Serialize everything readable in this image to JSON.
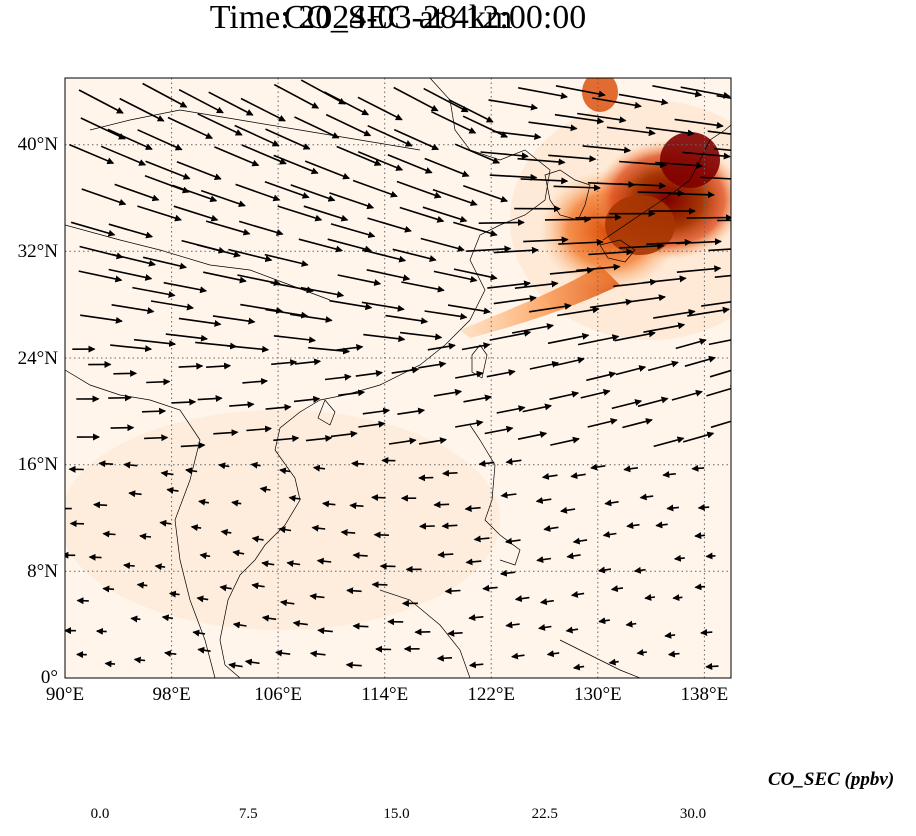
{
  "title_line1": "CO_SEC at 4km",
  "title_line2": "Time: 2024-03-28 12:00:00",
  "lat_ticks": [
    "40°N",
    "32°N",
    "24°N",
    "16°N",
    "8°N",
    "0°"
  ],
  "lon_ticks": [
    "90°E",
    "98°E",
    "106°E",
    "114°E",
    "122°E",
    "130°E",
    "138°E"
  ],
  "colorbar": {
    "label": "CO_SEC (ppbv)",
    "tick_labels": [
      "0.0",
      "7.5",
      "15.0",
      "22.5",
      "30.0"
    ],
    "min": 0,
    "max": 30,
    "colors": [
      "#fff5eb",
      "#fee6ce",
      "#fdd0a2",
      "#fdae6b",
      "#fd8d3c",
      "#f16913",
      "#d94801",
      "#a63603",
      "#7f0000"
    ]
  },
  "map": {
    "lon_range": [
      90,
      140
    ],
    "lat_range": [
      0,
      45
    ],
    "background": "#fff5eb",
    "gridlines": "dotted"
  }
}
